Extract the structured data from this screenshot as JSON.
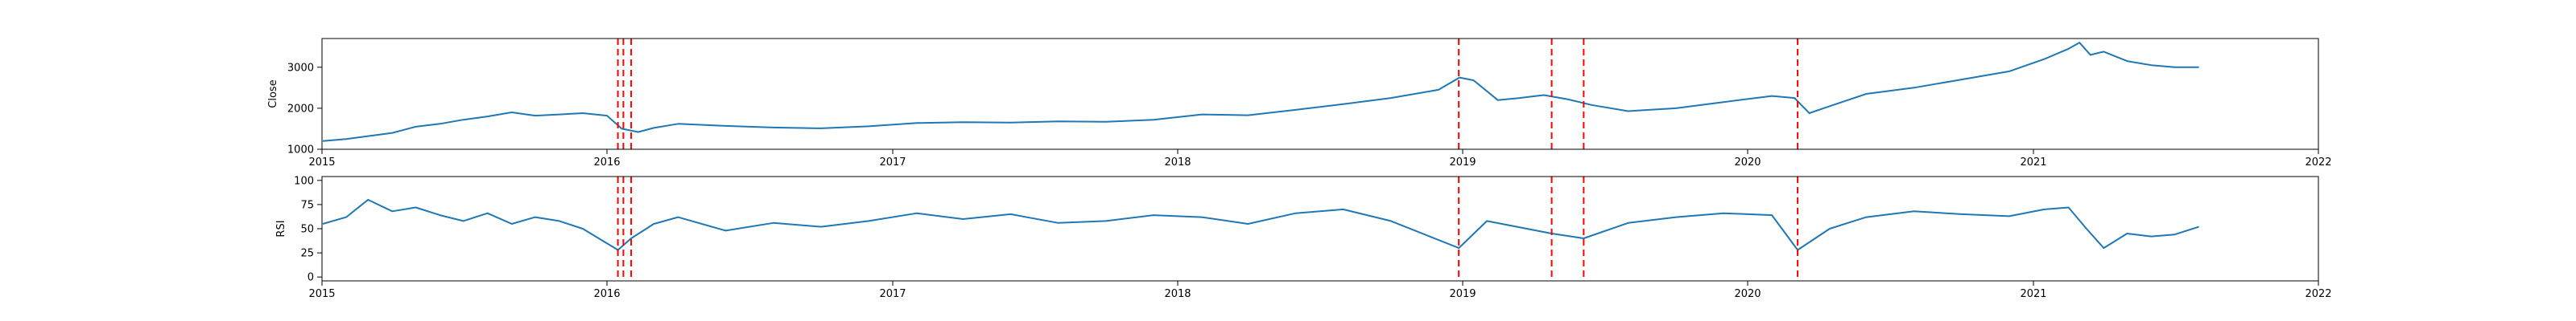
{
  "chart_data": [
    {
      "type": "line",
      "title": "",
      "xlabel": "",
      "ylabel": "Close",
      "xlim": [
        "2015-01-01",
        "2022-01-01"
      ],
      "ylim": [
        1000,
        3700
      ],
      "x_ticks": [
        "2015",
        "2016",
        "2017",
        "2018",
        "2019",
        "2020",
        "2021",
        "2022"
      ],
      "y_ticks": [
        "1000",
        "2000",
        "3000"
      ],
      "line_color": "#1f77b4",
      "marker_color": "#ff0000",
      "marker_style": "dashed vertical lines",
      "grid": false,
      "series": [
        {
          "x": [
            "2015-01-02",
            "2015-02-01",
            "2015-03-01",
            "2015-04-01",
            "2015-05-01",
            "2015-06-01",
            "2015-07-01",
            "2015-08-01",
            "2015-09-01",
            "2015-10-01",
            "2015-11-01",
            "2015-12-01",
            "2016-01-01",
            "2016-01-20",
            "2016-02-10",
            "2016-03-01",
            "2016-04-01",
            "2016-06-01",
            "2016-08-01",
            "2016-10-01",
            "2016-12-01",
            "2017-02-01",
            "2017-04-01",
            "2017-06-01",
            "2017-08-01",
            "2017-10-01",
            "2017-12-01",
            "2018-02-01",
            "2018-04-01",
            "2018-06-01",
            "2018-08-01",
            "2018-10-01",
            "2018-12-01",
            "2018-12-28",
            "2019-01-15",
            "2019-02-15",
            "2019-03-15",
            "2019-04-15",
            "2019-05-15",
            "2019-06-15",
            "2019-08-01",
            "2019-10-01",
            "2019-12-01",
            "2020-02-01",
            "2020-03-01",
            "2020-03-20",
            "2020-04-15",
            "2020-06-01",
            "2020-08-01",
            "2020-10-01",
            "2020-12-01",
            "2021-01-15",
            "2021-02-15",
            "2021-03-01",
            "2021-03-15",
            "2021-04-01",
            "2021-05-01",
            "2021-06-01",
            "2021-07-01",
            "2021-08-01"
          ],
          "values": [
            1200,
            1250,
            1320,
            1400,
            1550,
            1620,
            1720,
            1800,
            1900,
            1820,
            1850,
            1880,
            1820,
            1500,
            1420,
            1520,
            1620,
            1570,
            1530,
            1510,
            1560,
            1640,
            1660,
            1650,
            1680,
            1670,
            1720,
            1850,
            1830,
            1960,
            2100,
            2250,
            2450,
            2750,
            2680,
            2200,
            2250,
            2320,
            2220,
            2080,
            1930,
            2000,
            2150,
            2300,
            2250,
            1880,
            2050,
            2350,
            2500,
            2700,
            2900,
            3200,
            3450,
            3600,
            3300,
            3380,
            3150,
            3050,
            3000,
            3000
          ]
        }
      ],
      "markers_x": [
        "2016-01-15",
        "2016-01-22",
        "2016-02-01",
        "2018-12-27",
        "2019-04-25",
        "2019-06-05",
        "2020-03-05"
      ]
    },
    {
      "type": "line",
      "title": "",
      "xlabel": "",
      "ylabel": "RSI",
      "xlim": [
        "2015-01-01",
        "2022-01-01"
      ],
      "ylim": [
        -4,
        104
      ],
      "x_ticks": [
        "2015",
        "2016",
        "2017",
        "2018",
        "2019",
        "2020",
        "2021",
        "2022"
      ],
      "y_ticks": [
        "0",
        "25",
        "50",
        "75",
        "100"
      ],
      "line_color": "#1f77b4",
      "marker_color": "#ff0000",
      "marker_style": "dashed vertical lines",
      "grid": false,
      "series": [
        {
          "x": [
            "2015-01-02",
            "2015-02-01",
            "2015-03-01",
            "2015-04-01",
            "2015-05-01",
            "2015-06-01",
            "2015-07-01",
            "2015-08-01",
            "2015-09-01",
            "2015-10-01",
            "2015-11-01",
            "2015-12-01",
            "2016-01-15",
            "2016-02-01",
            "2016-03-01",
            "2016-04-01",
            "2016-06-01",
            "2016-08-01",
            "2016-10-01",
            "2016-12-01",
            "2017-02-01",
            "2017-04-01",
            "2017-06-01",
            "2017-08-01",
            "2017-10-01",
            "2017-12-01",
            "2018-02-01",
            "2018-04-01",
            "2018-06-01",
            "2018-08-01",
            "2018-10-01",
            "2018-12-27",
            "2019-02-01",
            "2019-04-25",
            "2019-06-05",
            "2019-08-01",
            "2019-10-01",
            "2019-12-01",
            "2020-02-01",
            "2020-03-05",
            "2020-04-15",
            "2020-06-01",
            "2020-08-01",
            "2020-10-01",
            "2020-12-01",
            "2021-01-15",
            "2021-02-15",
            "2021-03-10",
            "2021-04-01",
            "2021-05-01",
            "2021-06-01",
            "2021-07-01",
            "2021-08-01"
          ],
          "values": [
            55,
            62,
            80,
            68,
            72,
            64,
            58,
            66,
            55,
            62,
            58,
            50,
            28,
            40,
            55,
            62,
            48,
            56,
            52,
            58,
            66,
            60,
            65,
            56,
            58,
            64,
            62,
            55,
            66,
            70,
            58,
            30,
            58,
            45,
            40,
            56,
            62,
            66,
            64,
            28,
            50,
            62,
            68,
            65,
            63,
            70,
            72,
            50,
            30,
            45,
            42,
            44,
            52
          ]
        }
      ],
      "markers_x": [
        "2016-01-15",
        "2016-01-22",
        "2016-02-01",
        "2018-12-27",
        "2019-04-25",
        "2019-06-05",
        "2020-03-05"
      ]
    }
  ]
}
